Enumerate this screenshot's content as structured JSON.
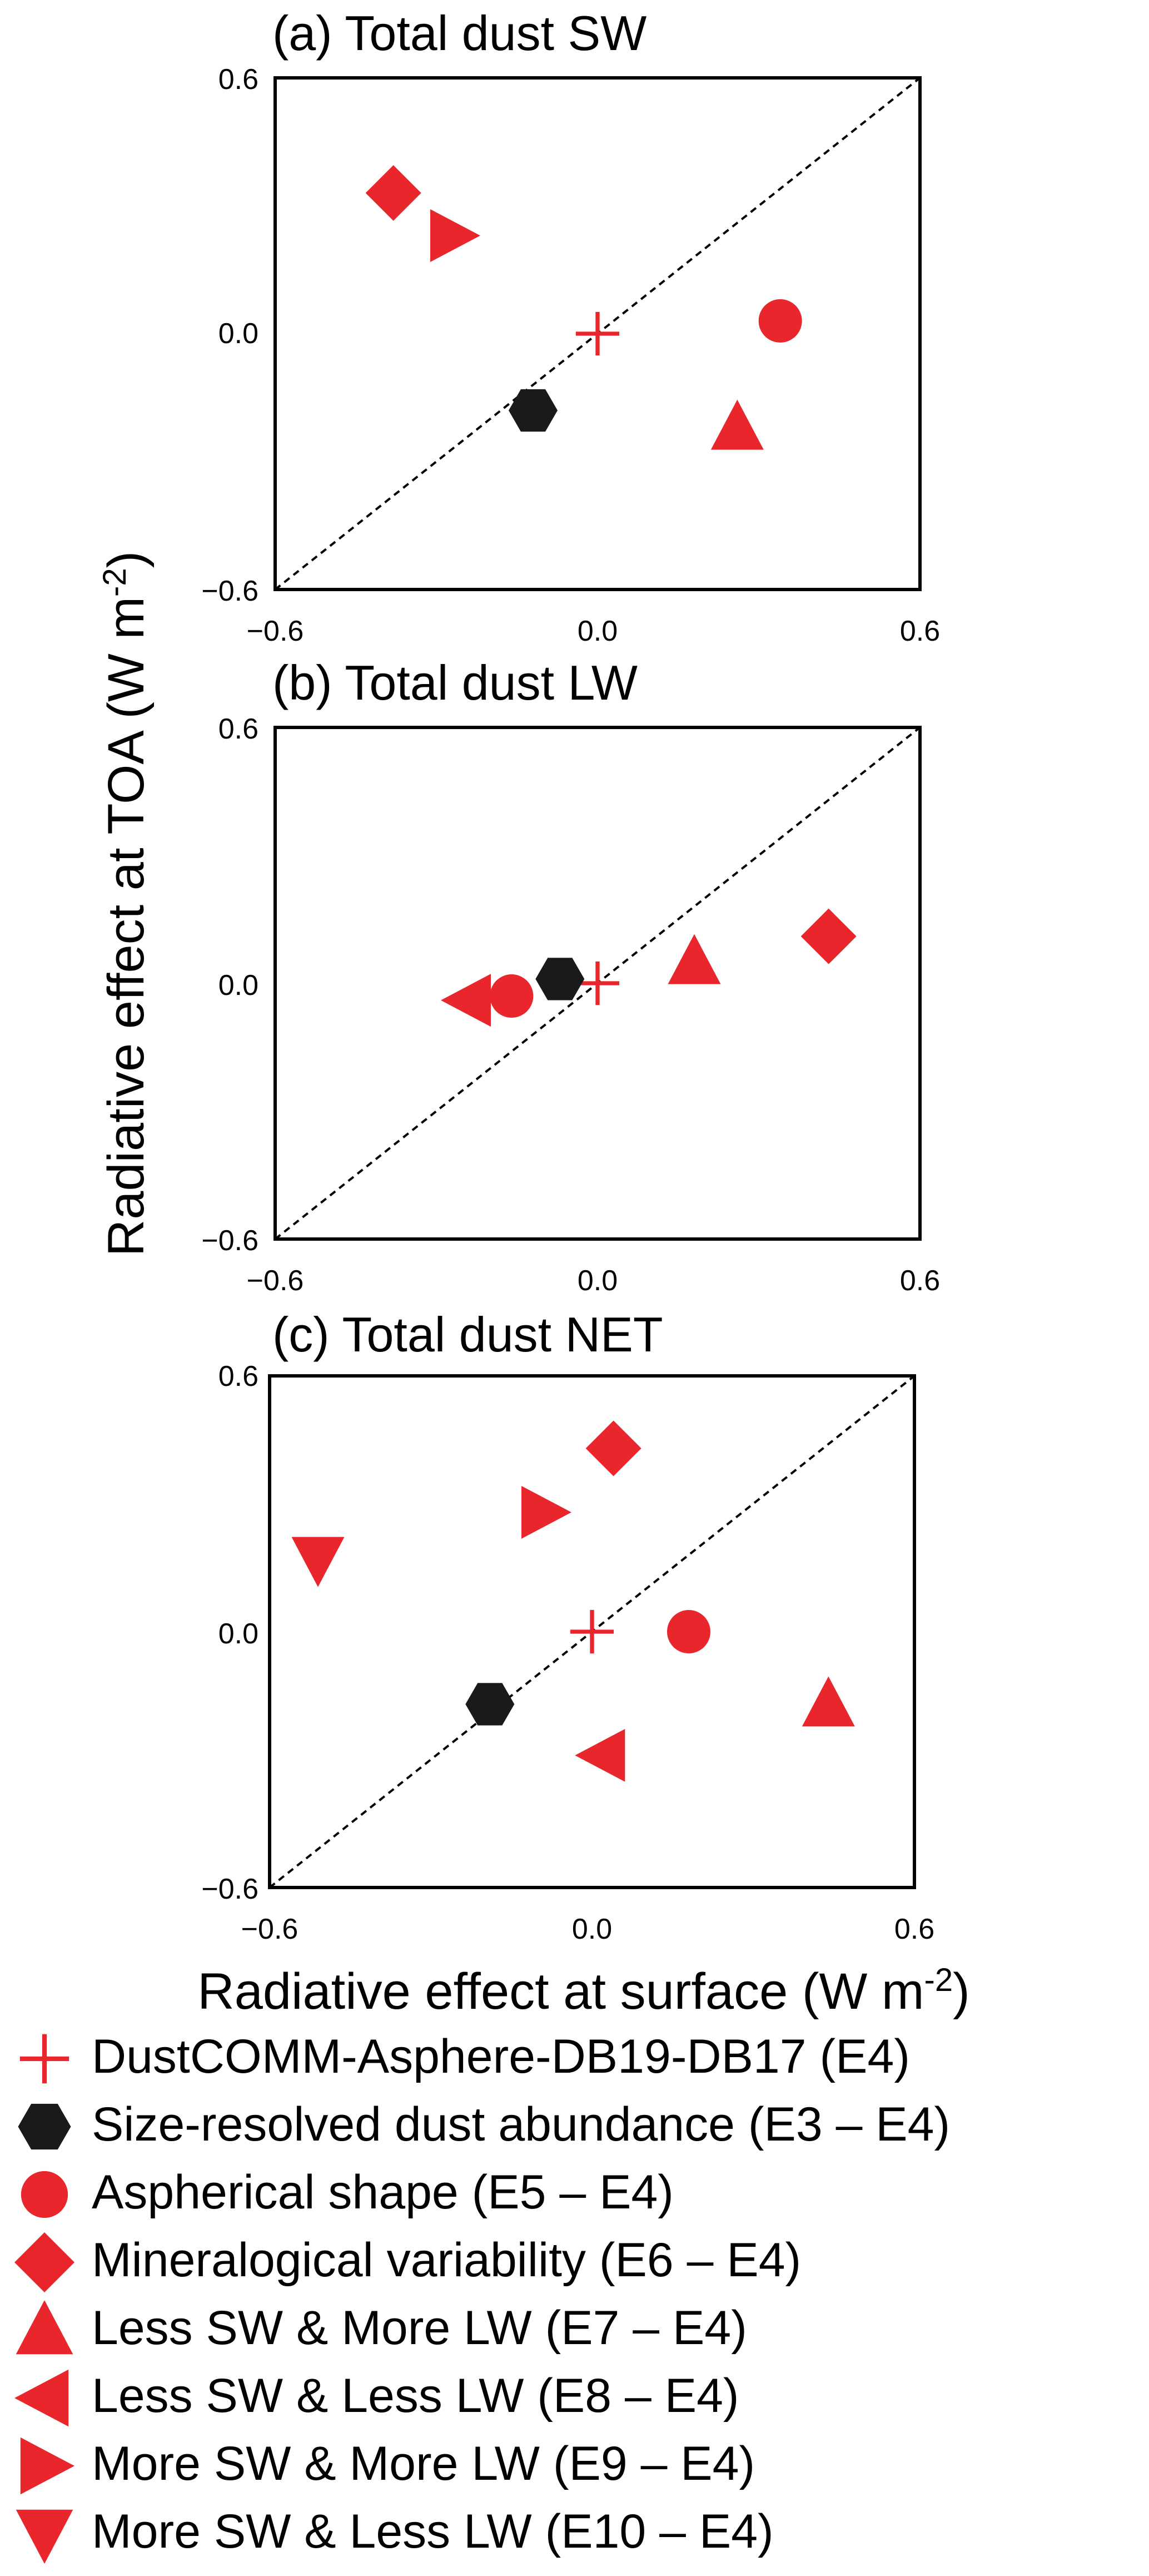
{
  "colors": {
    "red": "#e8262b",
    "black": "#1a1a1a"
  },
  "axis_labels": {
    "ylabel": "Radiative effect at TOA (W m",
    "xlabel": "Radiative effect at surface (W m",
    "unit_exponent": "-2",
    "closing": ")"
  },
  "chart_data": [
    {
      "type": "scatter",
      "title": "(a) Total dust SW",
      "xlim": [
        -0.6,
        0.6
      ],
      "ylim": [
        -0.6,
        0.6
      ],
      "x_ticks": [
        "−0.6",
        "0.0",
        "0.6"
      ],
      "y_ticks": [
        "0.6",
        "0.0",
        "−0.6"
      ],
      "reference_line": "1:1",
      "series": [
        {
          "name": "DustCOMM-Asphere-DB19-DB17 (E4)",
          "marker": "plus",
          "x": 0.0,
          "y": 0.0
        },
        {
          "name": "Size-resolved dust abundance (E3 – E4)",
          "marker": "hexagon",
          "x": -0.12,
          "y": -0.18
        },
        {
          "name": "Aspherical shape (E5 – E4)",
          "marker": "circle",
          "x": 0.34,
          "y": 0.03
        },
        {
          "name": "Mineralogical variability (E6 – E4)",
          "marker": "diamond",
          "x": -0.38,
          "y": 0.33
        },
        {
          "name": "Less SW & More LW (E7 – E4)",
          "marker": "triangle-up",
          "x": 0.26,
          "y": -0.22
        },
        {
          "name": "More SW & More LW (E9 – E4)",
          "marker": "triangle-right",
          "x": -0.27,
          "y": 0.23
        }
      ]
    },
    {
      "type": "scatter",
      "title": "(b) Total dust LW",
      "xlim": [
        -0.6,
        0.6
      ],
      "ylim": [
        -0.6,
        0.6
      ],
      "x_ticks": [
        "−0.6",
        "0.0",
        "0.6"
      ],
      "y_ticks": [
        "0.6",
        "0.0",
        "−0.6"
      ],
      "reference_line": "1:1",
      "series": [
        {
          "name": "DustCOMM-Asphere-DB19-DB17 (E4)",
          "marker": "plus",
          "x": 0.0,
          "y": 0.0
        },
        {
          "name": "Size-resolved dust abundance (E3 – E4)",
          "marker": "hexagon",
          "x": -0.07,
          "y": 0.01
        },
        {
          "name": "Aspherical shape (E5 – E4)",
          "marker": "circle",
          "x": -0.16,
          "y": -0.03
        },
        {
          "name": "Mineralogical variability (E6 – E4)",
          "marker": "diamond",
          "x": 0.43,
          "y": 0.11
        },
        {
          "name": "Less SW & More LW (E7 – E4)",
          "marker": "triangle-up",
          "x": 0.18,
          "y": 0.05
        },
        {
          "name": "Less SW & Less LW (E8 – E4)",
          "marker": "triangle-left",
          "x": -0.24,
          "y": -0.04
        }
      ]
    },
    {
      "type": "scatter",
      "title": "(c) Total dust NET",
      "xlim": [
        -0.6,
        0.6
      ],
      "ylim": [
        -0.6,
        0.6
      ],
      "x_ticks": [
        "−0.6",
        "0.0",
        "0.6"
      ],
      "y_ticks": [
        "0.6",
        "0.0",
        "−0.6"
      ],
      "reference_line": "1:1",
      "series": [
        {
          "name": "DustCOMM-Asphere-DB19-DB17 (E4)",
          "marker": "plus",
          "x": 0.0,
          "y": 0.0
        },
        {
          "name": "Size-resolved dust abundance (E3 – E4)",
          "marker": "hexagon",
          "x": -0.19,
          "y": -0.17
        },
        {
          "name": "Aspherical shape (E5 – E4)",
          "marker": "circle",
          "x": 0.18,
          "y": 0.0
        },
        {
          "name": "Mineralogical variability (E6 – E4)",
          "marker": "diamond",
          "x": 0.04,
          "y": 0.43
        },
        {
          "name": "Less SW & More LW (E7 – E4)",
          "marker": "triangle-up",
          "x": 0.44,
          "y": -0.17
        },
        {
          "name": "Less SW & Less LW (E8 – E4)",
          "marker": "triangle-left",
          "x": 0.02,
          "y": -0.29
        },
        {
          "name": "More SW & More LW (E9 – E4)",
          "marker": "triangle-right",
          "x": -0.09,
          "y": 0.28
        },
        {
          "name": "More SW & Less LW (E10 – E4)",
          "marker": "triangle-down",
          "x": -0.51,
          "y": 0.17
        }
      ]
    }
  ],
  "legend": [
    {
      "marker": "plus",
      "color": "#e8262b",
      "label": "DustCOMM-Asphere-DB19-DB17 (E4)"
    },
    {
      "marker": "hexagon",
      "color": "#1a1a1a",
      "label": "Size-resolved dust abundance (E3 – E4)"
    },
    {
      "marker": "circle",
      "color": "#e8262b",
      "label": "Aspherical shape (E5 – E4)"
    },
    {
      "marker": "diamond",
      "color": "#e8262b",
      "label": "Mineralogical variability (E6 – E4)"
    },
    {
      "marker": "triangle-up",
      "color": "#e8262b",
      "label": "Less SW & More LW (E7 – E4)"
    },
    {
      "marker": "triangle-left",
      "color": "#e8262b",
      "label": "Less SW & Less LW (E8 – E4)"
    },
    {
      "marker": "triangle-right",
      "color": "#e8262b",
      "label": "More SW & More LW (E9 – E4)"
    },
    {
      "marker": "triangle-down",
      "color": "#e8262b",
      "label": "More SW & Less LW (E10 – E4)"
    }
  ]
}
